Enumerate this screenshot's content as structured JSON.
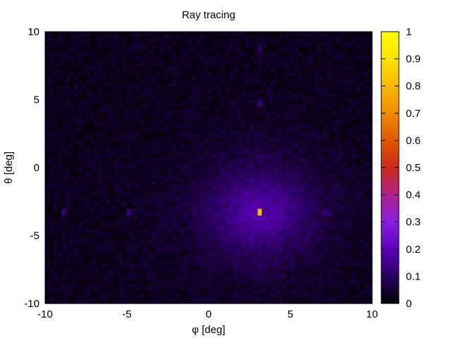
{
  "chart_data": {
    "type": "heatmap",
    "title": "Ray tracing",
    "xlabel": "φ [deg]",
    "ylabel": "θ [deg]",
    "xlim": [
      -10,
      10
    ],
    "ylim": [
      -10,
      10
    ],
    "x_ticks": [
      "-10",
      "-5",
      "0",
      "5",
      "10"
    ],
    "y_ticks": [
      "-10",
      "-5",
      "0",
      "5",
      "10"
    ],
    "colorbar": {
      "range": [
        0,
        1
      ],
      "ticks": [
        "0",
        "0.1",
        "0.2",
        "0.3",
        "0.4",
        "0.5",
        "0.6",
        "0.7",
        "0.8",
        "0.9",
        "1"
      ],
      "colormap": [
        "#000000",
        "#2a0060",
        "#5a00b8",
        "#8a20e0",
        "#b0208c",
        "#cc2a1a",
        "#e05800",
        "#f28a00",
        "#fbb800",
        "#ffe000",
        "#ffff00"
      ]
    },
    "grid": false,
    "features": [
      {
        "name": "main-peak",
        "x": 3.1,
        "y": -3.3,
        "value": 0.8
      },
      {
        "name": "secondary-spot",
        "x": 3.1,
        "y": 4.8,
        "value": 0.12
      },
      {
        "name": "secondary-spot",
        "x": 3.1,
        "y": 8.8,
        "value": 0.1
      },
      {
        "name": "secondary-spot",
        "x": 3.1,
        "y": 0.8,
        "value": 0.1
      },
      {
        "name": "secondary-spot",
        "x": 3.1,
        "y": -7.3,
        "value": 0.1
      },
      {
        "name": "secondary-spot",
        "x": -0.9,
        "y": -3.3,
        "value": 0.1
      },
      {
        "name": "secondary-spot",
        "x": -4.9,
        "y": -3.3,
        "value": 0.12
      },
      {
        "name": "secondary-spot",
        "x": -8.9,
        "y": -3.3,
        "value": 0.12
      },
      {
        "name": "secondary-spot",
        "x": 7.2,
        "y": -3.3,
        "value": 0.12
      }
    ],
    "background_level": 0.03
  }
}
